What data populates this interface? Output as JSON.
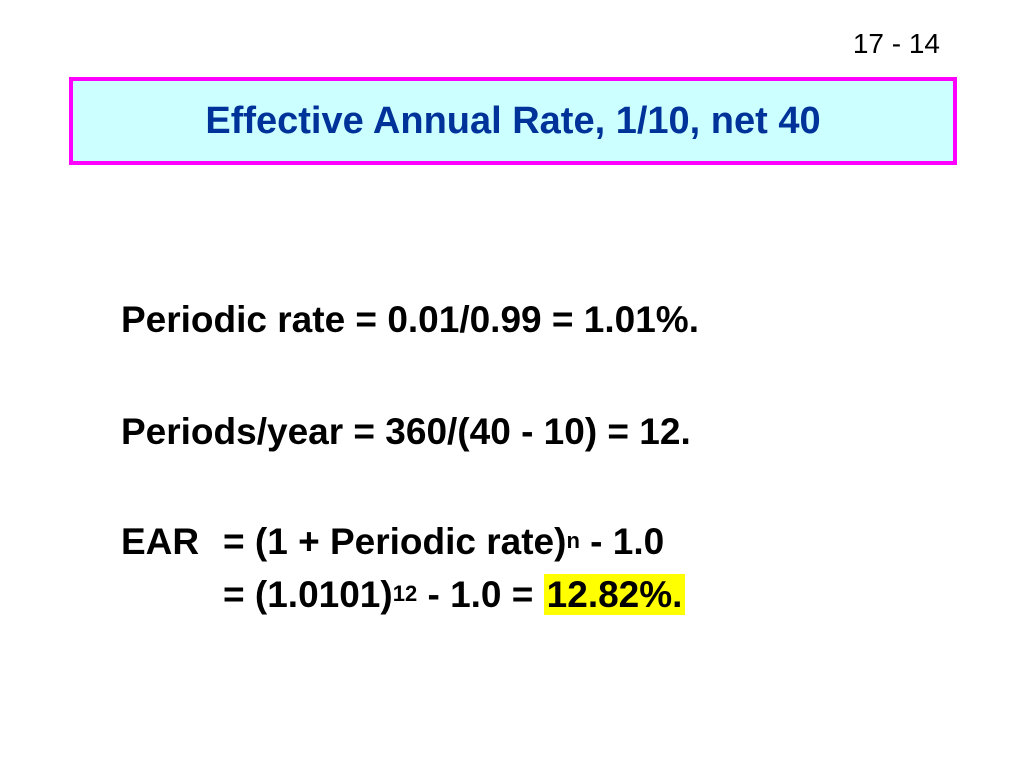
{
  "slide": {
    "number": "17 - 14",
    "title": "Effective Annual Rate, 1/10, net 40"
  },
  "body": {
    "periodic_rate": "Periodic rate = 0.01/0.99 = 1.01%.",
    "periods_per_year": "Periods/year = 360/(40 - 10) = 12.",
    "ear_label": "EAR",
    "ear_line1_pre": "= (1 + Periodic rate)",
    "ear_line1_exp": "n",
    "ear_line1_post": " - 1.0",
    "ear_line2_pre": "= (1.0101)",
    "ear_line2_exp": "12",
    "ear_line2_post": " - 1.0 = ",
    "ear_result": "12.82%."
  },
  "colors": {
    "title_border": "#ff00ff",
    "title_background": "#ccffff",
    "title_text": "#003399",
    "result_highlight": "#ffff00"
  }
}
